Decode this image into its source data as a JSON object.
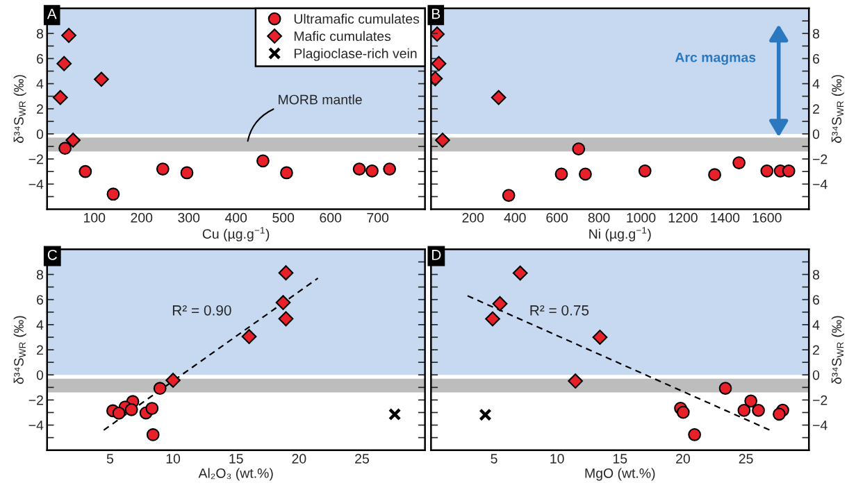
{
  "chart_data": [
    {
      "type": "scatter",
      "title": "A",
      "xlabel": "Cu (µg.g$^{−1}$)",
      "ylabel": "δ³⁴S$_{WR}$ (‰)",
      "xlim": [
        0,
        800
      ],
      "xticks": [
        100,
        200,
        300,
        400,
        500,
        600,
        700
      ],
      "ylim": [
        -6,
        10
      ],
      "yticks": [
        -4,
        -2,
        0,
        2,
        4,
        6,
        8,
        {
          "value": -5,
          "label": null
        },
        {
          "value": -3,
          "label": null
        },
        {
          "value": -1,
          "label": null
        },
        {
          "value": 1,
          "label": null
        },
        {
          "value": 3,
          "label": null
        },
        {
          "value": 5,
          "label": null
        },
        {
          "value": 7,
          "label": null
        },
        {
          "value": 9,
          "label": null
        }
      ],
      "legend": "top right",
      "grid": false,
      "bands": [
        {
          "axis": "y",
          "from": 0,
          "to": 10,
          "color": "#c6d9f0"
        },
        {
          "axis": "y",
          "from": -1.4,
          "to": -0.3,
          "color": "#bdbdbd",
          "label": "MORB mantle"
        }
      ],
      "series": [
        {
          "name": "Ultramafic cumulates",
          "color": "#e8202a",
          "marker": "circle",
          "x": [
            38,
            81,
            140,
            245,
            296,
            457,
            507,
            661,
            688,
            725
          ],
          "values": [
            -1.15,
            -3.0,
            -4.8,
            -2.8,
            -3.1,
            -2.15,
            -3.1,
            -2.8,
            -2.95,
            -2.8
          ]
        },
        {
          "name": "Mafic cumulates",
          "color": "#e8202a",
          "marker": "diamond",
          "x": [
            46,
            36,
            115,
            28,
            55
          ],
          "values": [
            7.85,
            5.6,
            4.35,
            2.9,
            -0.5
          ]
        },
        {
          "name": "Plagioclase-rich vein",
          "color": "#000000",
          "marker": "cross"
        }
      ]
    },
    {
      "type": "scatter",
      "title": "B",
      "xlabel": "Ni (µg.g$^{−1}$)",
      "y2label": "δ³⁴S$_{WR}$ (‰)",
      "xlim": [
        0,
        1800
      ],
      "xticks": [
        200,
        400,
        600,
        800,
        1000,
        1200,
        1400,
        1600
      ],
      "y2lim": [
        -6,
        10
      ],
      "y2ticks": [
        -4,
        -2,
        0,
        2,
        4,
        6,
        8,
        {
          "value": -5,
          "label": null
        },
        {
          "value": -3,
          "label": null
        },
        {
          "value": -1,
          "label": null
        },
        {
          "value": 1,
          "label": null
        },
        {
          "value": 3,
          "label": null
        },
        {
          "value": 5,
          "label": null
        },
        {
          "value": 7,
          "label": null
        },
        {
          "value": 9,
          "label": null
        }
      ],
      "grid": false,
      "bands": [
        {
          "axis": "y2",
          "from": 0,
          "to": 10,
          "color": "#c6d9f0",
          "label": "Arc magmas"
        },
        {
          "axis": "y2",
          "from": -1.4,
          "to": -0.3,
          "color": "#bdbdbd"
        }
      ],
      "series": [
        {
          "color": "#e8202a",
          "marker": "circle",
          "axis": "y2",
          "x": [
            370,
            621,
            703,
            735,
            1019,
            1351,
            1467,
            1600,
            1664,
            1704
          ],
          "values": [
            -4.9,
            -3.2,
            -1.2,
            -3.2,
            -2.95,
            -3.25,
            -2.3,
            -2.95,
            -2.95,
            -2.95
          ]
        },
        {
          "color": "#e8202a",
          "marker": "diamond",
          "axis": "y2",
          "x": [
            29,
            37,
            20,
            322,
            55
          ],
          "values": [
            7.95,
            5.6,
            4.4,
            2.9,
            -0.5
          ]
        }
      ]
    },
    {
      "type": "scatter",
      "title": "C",
      "xlabel": "Al₂O₃ (wt.%)",
      "ylabel": "δ³⁴S$_{WR}$ (‰)",
      "xlim": [
        0,
        30
      ],
      "xticks": [
        5,
        10,
        15,
        20,
        25
      ],
      "ylim": [
        -6,
        10
      ],
      "yticks": [
        -4,
        -2,
        0,
        2,
        4,
        6,
        8,
        {
          "value": -5,
          "label": null
        },
        {
          "value": -3,
          "label": null
        },
        {
          "value": -1,
          "label": null
        },
        {
          "value": 1,
          "label": null
        },
        {
          "value": 3,
          "label": null
        },
        {
          "value": 5,
          "label": null
        },
        {
          "value": 7,
          "label": null
        },
        {
          "value": 9,
          "label": null
        }
      ],
      "grid": false,
      "annotations": [
        "R² = 0.90"
      ],
      "bands": [
        {
          "axis": "y",
          "from": 0,
          "to": 10,
          "color": "#c6d9f0"
        },
        {
          "axis": "y",
          "from": -1.4,
          "to": -0.3,
          "color": "#bdbdbd"
        }
      ],
      "series": [
        {
          "type": "line",
          "color": "#000000",
          "line_style": "dashed",
          "marker": "none",
          "x": [
            4.5,
            21.5
          ],
          "values": [
            -4.4,
            7.7
          ]
        },
        {
          "color": "#e8202a",
          "marker": "circle",
          "x": [
            8.96,
            6.8,
            6.2,
            6.7,
            5.22,
            5.7,
            7.85,
            8.33,
            8.41
          ],
          "values": [
            -1.08,
            -2.13,
            -2.56,
            -2.77,
            -2.86,
            -3.05,
            -3.03,
            -2.67,
            -4.77
          ]
        },
        {
          "color": "#e8202a",
          "marker": "diamond",
          "x": [
            18.96,
            18.74,
            18.96,
            16.04,
            10.0
          ],
          "values": [
            8.13,
            5.76,
            4.47,
            3.05,
            -0.43
          ]
        },
        {
          "color": "#000000",
          "marker": "cross",
          "x": [
            27.6
          ],
          "values": [
            -3.14
          ]
        }
      ]
    },
    {
      "type": "scatter",
      "title": "D",
      "xlabel": "MgO (wt.%)",
      "y2label": "δ³⁴S$_{WR}$ (‰)",
      "xlim": [
        0,
        30
      ],
      "xticks": [
        5,
        10,
        15,
        20,
        25
      ],
      "y2lim": [
        -6,
        10
      ],
      "y2ticks": [
        -4,
        -2,
        0,
        2,
        4,
        6,
        8,
        {
          "value": -5,
          "label": null
        },
        {
          "value": -3,
          "label": null
        },
        {
          "value": -1,
          "label": null
        },
        {
          "value": 1,
          "label": null
        },
        {
          "value": 3,
          "label": null
        },
        {
          "value": 5,
          "label": null
        },
        {
          "value": 7,
          "label": null
        },
        {
          "value": 9,
          "label": null
        }
      ],
      "grid": false,
      "annotations": [
        "R² = 0.75"
      ],
      "bands": [
        {
          "axis": "y2",
          "from": 0,
          "to": 10,
          "color": "#c6d9f0"
        },
        {
          "axis": "y2",
          "from": -1.4,
          "to": -0.3,
          "color": "#bdbdbd"
        }
      ],
      "series": [
        {
          "type": "line",
          "color": "#000000",
          "line_style": "dashed",
          "marker": "none",
          "axis": "y2",
          "x": [
            2.9,
            26.9
          ],
          "values": [
            6.3,
            -4.4
          ]
        },
        {
          "color": "#e8202a",
          "marker": "circle",
          "axis": "y2",
          "x": [
            23.37,
            25.39,
            19.81,
            20.02,
            24.85,
            25.99,
            27.92,
            27.64,
            20.92
          ],
          "values": [
            -1.07,
            -2.08,
            -2.66,
            -2.98,
            -2.83,
            -2.83,
            -2.81,
            -3.13,
            -4.76
          ]
        },
        {
          "color": "#e8202a",
          "marker": "diamond",
          "axis": "y2",
          "x": [
            7.08,
            5.47,
            4.89,
            13.41,
            11.46
          ],
          "values": [
            8.11,
            5.67,
            4.46,
            3.0,
            -0.49
          ]
        },
        {
          "color": "#000000",
          "marker": "cross",
          "axis": "y2",
          "x": [
            4.31
          ],
          "values": [
            -3.18
          ]
        }
      ]
    }
  ]
}
